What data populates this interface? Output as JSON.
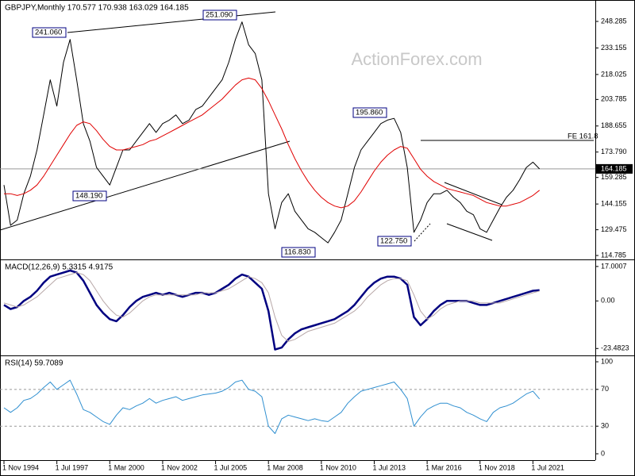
{
  "chart_data": [
    {
      "type": "line",
      "title": "GBPJPY,Monthly  170.577 170.938 163.029 164.185",
      "watermark": "ActionForex.com",
      "categories": [
        "1 Nov 1994",
        null,
        null,
        null,
        null,
        null,
        null,
        null,
        "1 Jul 1997",
        null,
        null,
        null,
        null,
        null,
        null,
        null,
        "1 Mar 2000",
        null,
        null,
        null,
        null,
        null,
        null,
        null,
        "1 Nov 2002",
        null,
        null,
        null,
        null,
        null,
        null,
        null,
        "1 Jul 2005",
        null,
        null,
        null,
        null,
        null,
        null,
        null,
        "1 Mar 2008",
        null,
        null,
        null,
        null,
        null,
        null,
        null,
        "1 Nov 2010",
        null,
        null,
        null,
        null,
        null,
        null,
        null,
        "1 Jul 2013",
        null,
        null,
        null,
        null,
        null,
        null,
        null,
        "1 Mar 2016",
        null,
        null,
        null,
        null,
        null,
        null,
        null,
        "1 Nov 2018",
        null,
        null,
        null,
        null,
        null,
        null,
        null,
        "1 Jul 2021",
        null
      ],
      "series": [
        {
          "color": "#000000",
          "width": 1,
          "values": [
            155,
            132,
            135,
            150,
            160,
            175,
            195,
            215,
            200,
            225,
            238,
            215,
            190,
            180,
            165,
            160,
            155,
            165,
            175,
            175,
            180,
            185,
            190,
            185,
            190,
            192,
            195,
            190,
            192,
            198,
            200,
            205,
            210,
            215,
            225,
            238,
            248,
            235,
            230,
            215,
            150,
            130,
            145,
            150,
            140,
            135,
            130,
            128,
            125,
            122,
            128,
            135,
            150,
            165,
            175,
            180,
            185,
            190,
            192,
            193,
            185,
            165,
            128,
            135,
            145,
            150,
            150,
            152,
            148,
            145,
            140,
            138,
            130,
            128,
            135,
            142,
            148,
            152,
            158,
            165,
            168,
            164.185
          ]
        },
        {
          "color": "#e00000",
          "width": 1,
          "values": [
            150,
            150,
            149,
            150,
            152,
            155,
            160,
            166,
            172,
            178,
            184,
            189,
            191,
            190,
            186,
            181,
            177,
            175,
            175,
            176,
            177,
            178,
            180,
            181,
            183,
            185,
            187,
            189,
            191,
            193,
            195,
            198,
            201,
            204,
            208,
            212,
            215,
            216,
            215,
            210,
            203,
            195,
            187,
            178,
            170,
            163,
            157,
            152,
            148,
            145,
            143,
            142,
            143,
            146,
            151,
            157,
            163,
            168,
            172,
            175,
            177,
            176,
            170,
            164,
            160,
            157,
            155,
            153,
            152,
            151,
            150,
            149,
            147,
            145,
            144,
            143,
            143,
            144,
            145,
            147,
            149,
            152
          ]
        }
      ],
      "last_price": 164.185,
      "annotations": [
        "241.060",
        "251.090",
        "148.190",
        "116.830",
        "195.860",
        "122.750",
        "FE 161.8"
      ],
      "ylim": [
        113.0,
        259.6
      ],
      "yticks": [
        248.285,
        233.155,
        218.025,
        203.785,
        188.655,
        {
          "value": 173.79,
          "label": "173.790"
        },
        159.285,
        144.155,
        129.475,
        114.785
      ]
    },
    {
      "type": "line",
      "title": "MACD(12,26,9) 5.3315 4.9175",
      "series": [
        {
          "color": "#000080",
          "width": 2.5,
          "values": [
            -2,
            -4,
            -3,
            0,
            2,
            5,
            9,
            12,
            13,
            14,
            15,
            14,
            10,
            4,
            -2,
            -6,
            -9,
            -10,
            -7,
            -3,
            0,
            2,
            3,
            4,
            3,
            4,
            3,
            2,
            3,
            4,
            4,
            3,
            4,
            6,
            8,
            11,
            13,
            12,
            9,
            6,
            -5,
            -24,
            -23,
            -19,
            -16,
            -14,
            -13,
            -12,
            -11,
            -10,
            -9,
            -7,
            -5,
            -2,
            2,
            6,
            9,
            11,
            12,
            12,
            11,
            8,
            -8,
            -12,
            -9,
            -5,
            -2,
            0,
            0,
            0,
            0,
            -1,
            -2,
            -2,
            -1,
            0,
            1,
            2,
            3,
            4,
            5,
            5.3315
          ]
        },
        {
          "color": "#b8a8a8",
          "width": 1,
          "values": [
            -1,
            -2,
            -3,
            -2,
            0,
            2,
            5,
            8,
            11,
            12,
            13,
            14,
            13,
            10,
            5,
            0,
            -4,
            -7,
            -8,
            -6,
            -3,
            0,
            2,
            3,
            3,
            3,
            3,
            3,
            3,
            3,
            4,
            4,
            4,
            5,
            6,
            8,
            10,
            12,
            11,
            9,
            4,
            -8,
            -17,
            -20,
            -19,
            -17,
            -15,
            -14,
            -13,
            -12,
            -11,
            -9,
            -7,
            -5,
            -2,
            2,
            5,
            8,
            10,
            11,
            11,
            10,
            3,
            -5,
            -9,
            -7,
            -4,
            -2,
            -1,
            0,
            0,
            0,
            -1,
            -1,
            -1,
            -1,
            0,
            1,
            2,
            3,
            4,
            4.9175
          ]
        }
      ],
      "ylim": [
        -26.5,
        19.7
      ],
      "yticks": [
        17.0007,
        {
          "value": 0,
          "label": "0.00"
        },
        -23.4823
      ]
    },
    {
      "type": "line",
      "title": "RSI(14) 59.7089",
      "series": [
        {
          "color": "#2f8fd0",
          "width": 1,
          "values": [
            50,
            45,
            50,
            58,
            60,
            65,
            72,
            78,
            70,
            75,
            80,
            65,
            48,
            45,
            40,
            35,
            32,
            42,
            50,
            48,
            52,
            55,
            60,
            55,
            58,
            60,
            62,
            58,
            60,
            62,
            64,
            65,
            66,
            68,
            72,
            78,
            80,
            70,
            68,
            62,
            30,
            22,
            38,
            42,
            40,
            38,
            36,
            38,
            36,
            35,
            40,
            45,
            55,
            62,
            68,
            70,
            72,
            74,
            76,
            78,
            70,
            60,
            30,
            40,
            48,
            52,
            55,
            55,
            52,
            50,
            45,
            42,
            38,
            35,
            45,
            50,
            52,
            55,
            60,
            65,
            68,
            59.7089
          ]
        }
      ],
      "dashed_levels": [
        70,
        30
      ],
      "ylim": [
        -6.9,
        105.2
      ],
      "yticks": [
        100,
        70,
        30,
        0
      ]
    }
  ]
}
